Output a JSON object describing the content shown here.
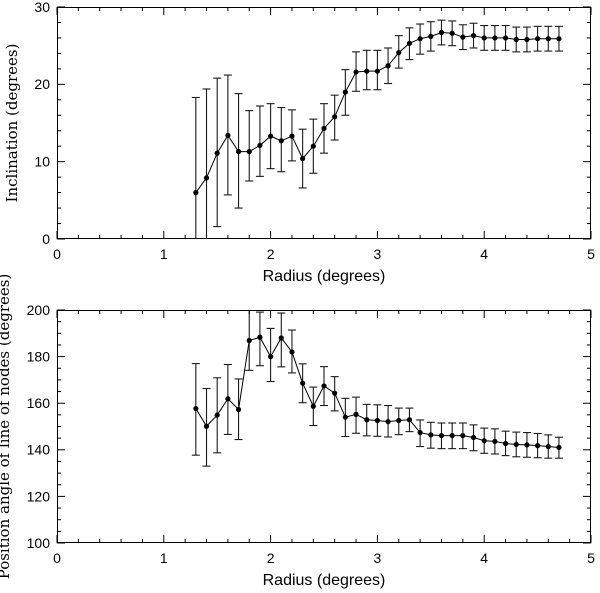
{
  "figure": {
    "background": "#ffffff",
    "axis_color": "#000000",
    "data_color": "#000000",
    "error_bar_color": "#1a1a1a"
  },
  "chart_data": [
    {
      "type": "line",
      "panel": "top",
      "title": "",
      "xlabel": "Radius (degrees)",
      "ylabel": "Inclination (degrees)",
      "xlim": [
        0,
        5
      ],
      "ylim": [
        0,
        30
      ],
      "x_major_ticks": [
        0,
        1,
        2,
        3,
        4,
        5
      ],
      "x_minor_step": 0.2,
      "y_major_ticks": [
        0,
        10,
        20,
        30
      ],
      "y_minor_step": 2,
      "grid": false,
      "legend": "none",
      "marker": "filled-circle",
      "error_bars": true,
      "x": [
        1.3,
        1.4,
        1.5,
        1.6,
        1.7,
        1.8,
        1.9,
        2.0,
        2.1,
        2.2,
        2.3,
        2.4,
        2.5,
        2.6,
        2.7,
        2.8,
        2.9,
        3.0,
        3.1,
        3.2,
        3.3,
        3.4,
        3.5,
        3.6,
        3.7,
        3.8,
        3.9,
        4.0,
        4.1,
        4.2,
        4.3,
        4.4,
        4.5,
        4.6,
        4.7
      ],
      "y": [
        6.0,
        7.9,
        11.1,
        13.4,
        11.3,
        11.3,
        12.1,
        13.3,
        12.7,
        13.3,
        10.4,
        12.0,
        14.3,
        15.8,
        19.0,
        21.6,
        21.7,
        21.7,
        22.4,
        24.1,
        25.3,
        25.9,
        26.2,
        26.7,
        26.6,
        26.1,
        26.3,
        26.0,
        26.0,
        26.0,
        25.8,
        25.8,
        25.9,
        25.9,
        25.9
      ],
      "y_err_low": [
        0.0,
        0.0,
        1.6,
        5.7,
        4.0,
        7.5,
        8.1,
        9.1,
        8.7,
        10.1,
        6.6,
        8.5,
        11.1,
        12.8,
        16.0,
        19.1,
        19.3,
        19.3,
        20.1,
        22.1,
        23.2,
        23.9,
        24.3,
        25.1,
        25.0,
        24.5,
        24.7,
        24.4,
        24.4,
        24.4,
        24.2,
        24.2,
        24.3,
        24.3,
        24.3
      ],
      "y_err_high": [
        18.3,
        19.4,
        20.8,
        21.2,
        18.8,
        16.6,
        17.2,
        17.5,
        17.0,
        16.7,
        14.2,
        15.5,
        17.5,
        18.6,
        21.9,
        24.2,
        24.4,
        24.4,
        24.7,
        26.3,
        27.3,
        27.8,
        28.1,
        28.3,
        28.2,
        27.7,
        27.9,
        27.6,
        27.6,
        27.6,
        27.4,
        27.4,
        27.5,
        27.5,
        27.5
      ]
    },
    {
      "type": "line",
      "panel": "bottom",
      "title": "",
      "xlabel": "Radius (degrees)",
      "ylabel": "Position angle of line of nodes (degrees)",
      "xlim": [
        0,
        5
      ],
      "ylim": [
        100,
        200
      ],
      "x_major_ticks": [
        0,
        1,
        2,
        3,
        4,
        5
      ],
      "x_minor_step": 0.2,
      "y_major_ticks": [
        100,
        120,
        140,
        160,
        180,
        200
      ],
      "y_minor_step": 5,
      "grid": false,
      "legend": "none",
      "marker": "filled-circle",
      "error_bars": true,
      "x": [
        1.3,
        1.4,
        1.5,
        1.6,
        1.7,
        1.8,
        1.9,
        2.0,
        2.1,
        2.2,
        2.3,
        2.4,
        2.5,
        2.6,
        2.7,
        2.8,
        2.9,
        3.0,
        3.1,
        3.2,
        3.3,
        3.4,
        3.5,
        3.6,
        3.7,
        3.8,
        3.9,
        4.0,
        4.1,
        4.2,
        4.3,
        4.4,
        4.5,
        4.6,
        4.7
      ],
      "y": [
        157.7,
        150.1,
        154.9,
        161.9,
        157.3,
        186.9,
        188.3,
        180.0,
        188.0,
        182.0,
        168.6,
        158.7,
        167.4,
        164.3,
        154.0,
        155.2,
        152.9,
        152.6,
        152.1,
        152.6,
        152.9,
        147.4,
        146.4,
        146.1,
        146.1,
        146.1,
        145.3,
        143.9,
        143.6,
        142.7,
        142.3,
        142.1,
        141.8,
        141.4,
        141.0
      ],
      "y_err_low": [
        137.7,
        133.0,
        138.7,
        146.6,
        144.4,
        174.1,
        176.1,
        169.3,
        175.6,
        173.0,
        160.2,
        150.4,
        159.0,
        156.7,
        145.7,
        147.1,
        146.0,
        145.8,
        145.5,
        146.5,
        147.8,
        141.4,
        140.7,
        140.5,
        140.5,
        140.5,
        139.6,
        138.5,
        138.2,
        137.5,
        137.0,
        136.8,
        136.6,
        136.4,
        136.4
      ],
      "y_err_high": [
        177.0,
        166.3,
        170.9,
        176.6,
        170.4,
        200.3,
        199.1,
        192.1,
        198.7,
        191.4,
        176.9,
        166.9,
        175.7,
        171.4,
        162.1,
        162.6,
        159.5,
        159.3,
        159.0,
        157.9,
        157.9,
        152.8,
        151.8,
        151.5,
        151.5,
        151.5,
        150.7,
        149.3,
        149.0,
        148.0,
        147.6,
        147.4,
        147.0,
        146.4,
        145.4
      ]
    }
  ]
}
